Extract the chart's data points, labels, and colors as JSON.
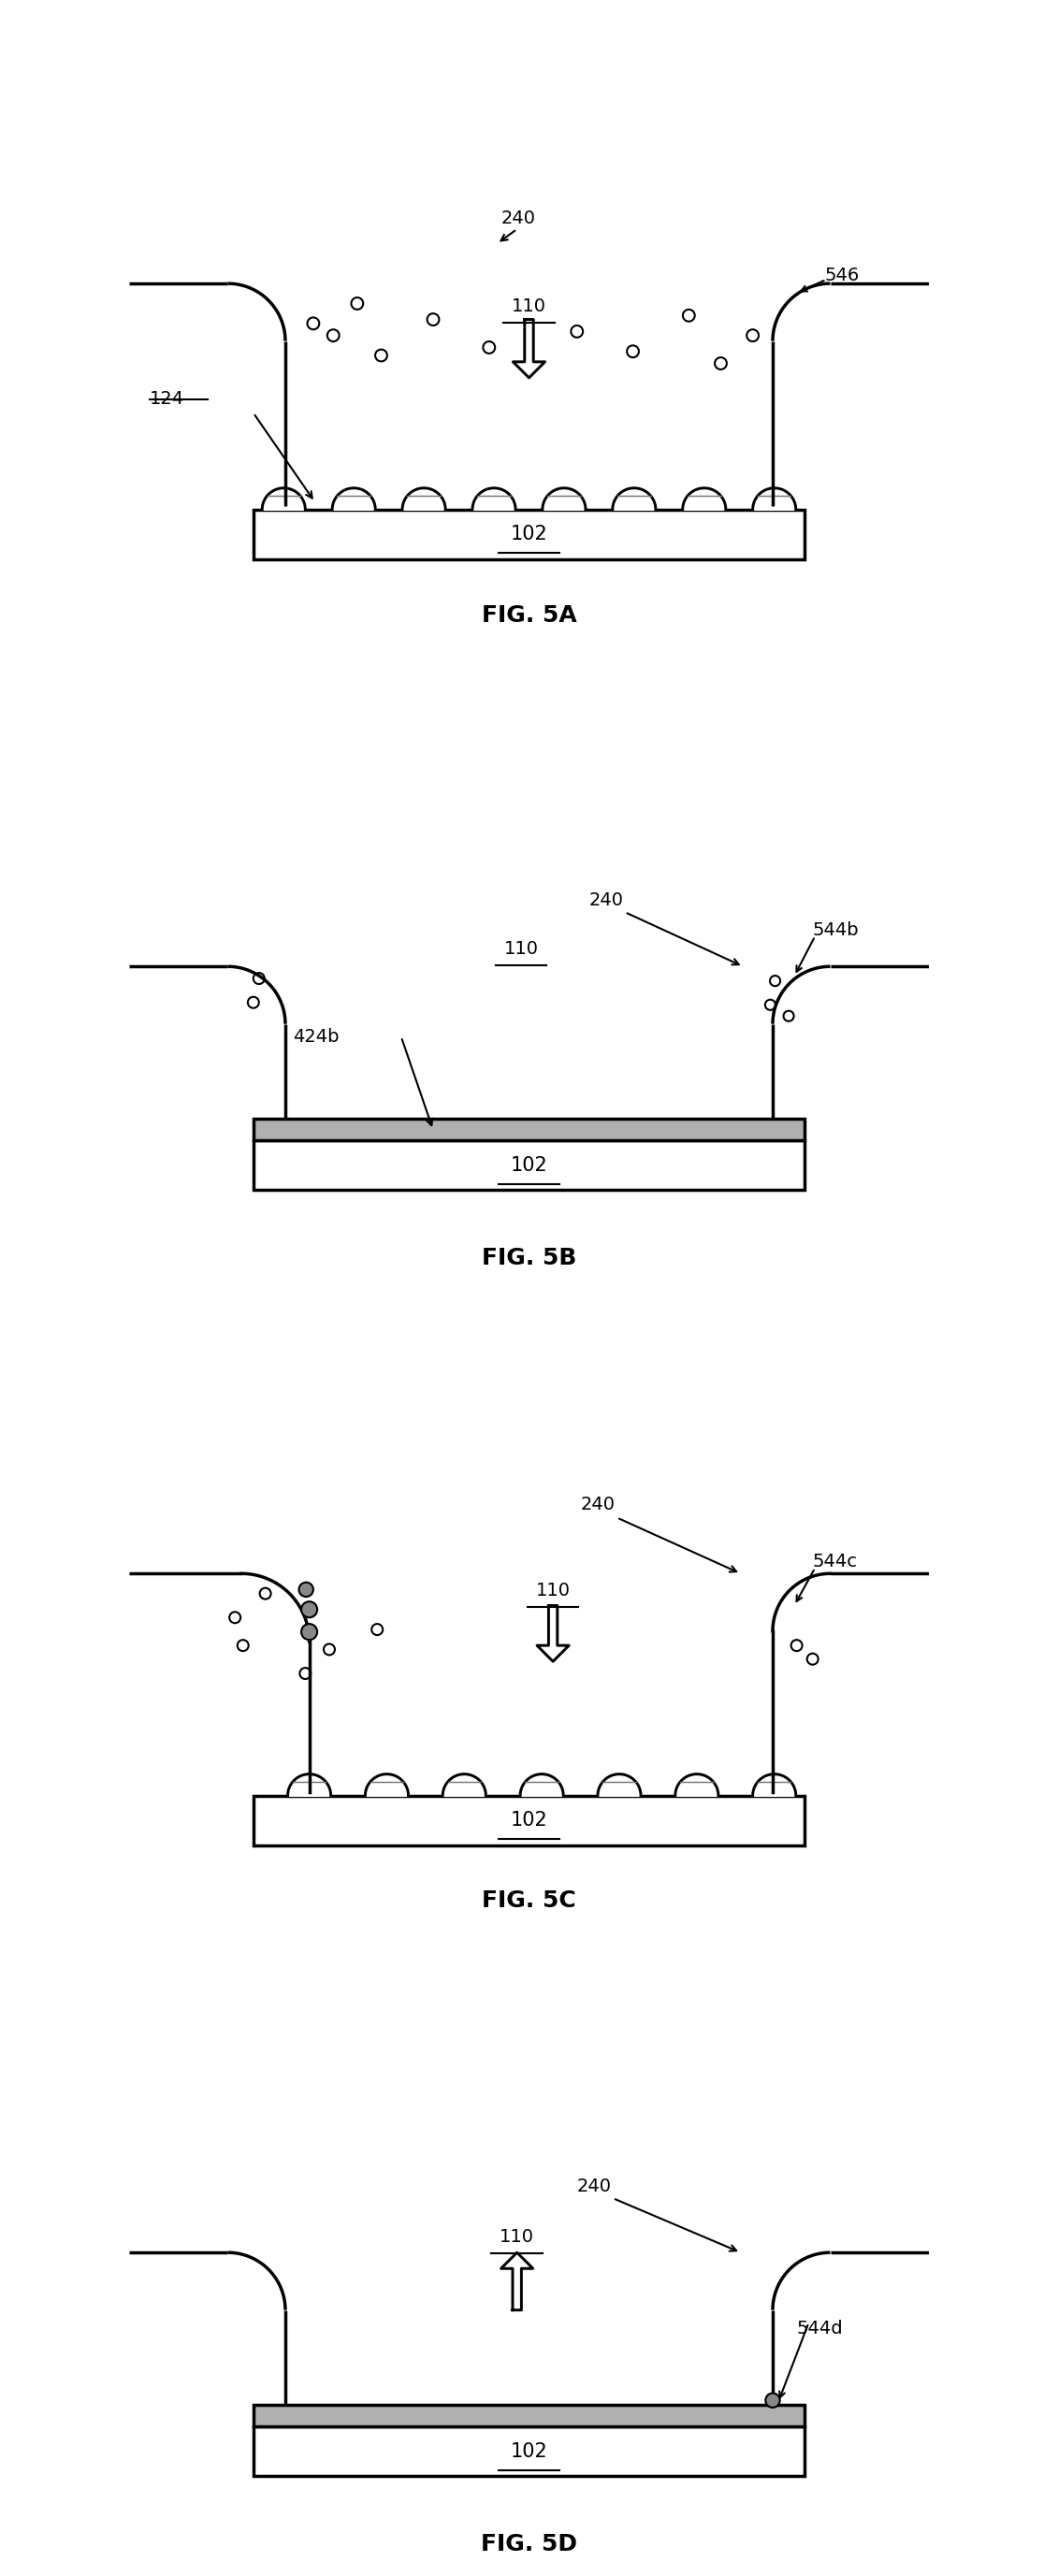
{
  "bg_color": "#ffffff",
  "line_color": "#000000",
  "gray_fill": "#b0b0b0",
  "lw": 2.5,
  "lw_thin": 1.5,
  "fig_labels": [
    "FIG. 5A",
    "FIG. 5B",
    "FIG. 5C",
    "FIG. 5D"
  ],
  "label_102": "102",
  "label_110": "110",
  "label_124": "124",
  "label_240": "240",
  "label_424b": "424b",
  "label_544b": "544b",
  "label_544c": "544c",
  "label_544d": "544d",
  "label_546": "546",
  "fontsize_label": 14,
  "fontsize_fig": 18,
  "hemi_hatch_color": "#888888"
}
